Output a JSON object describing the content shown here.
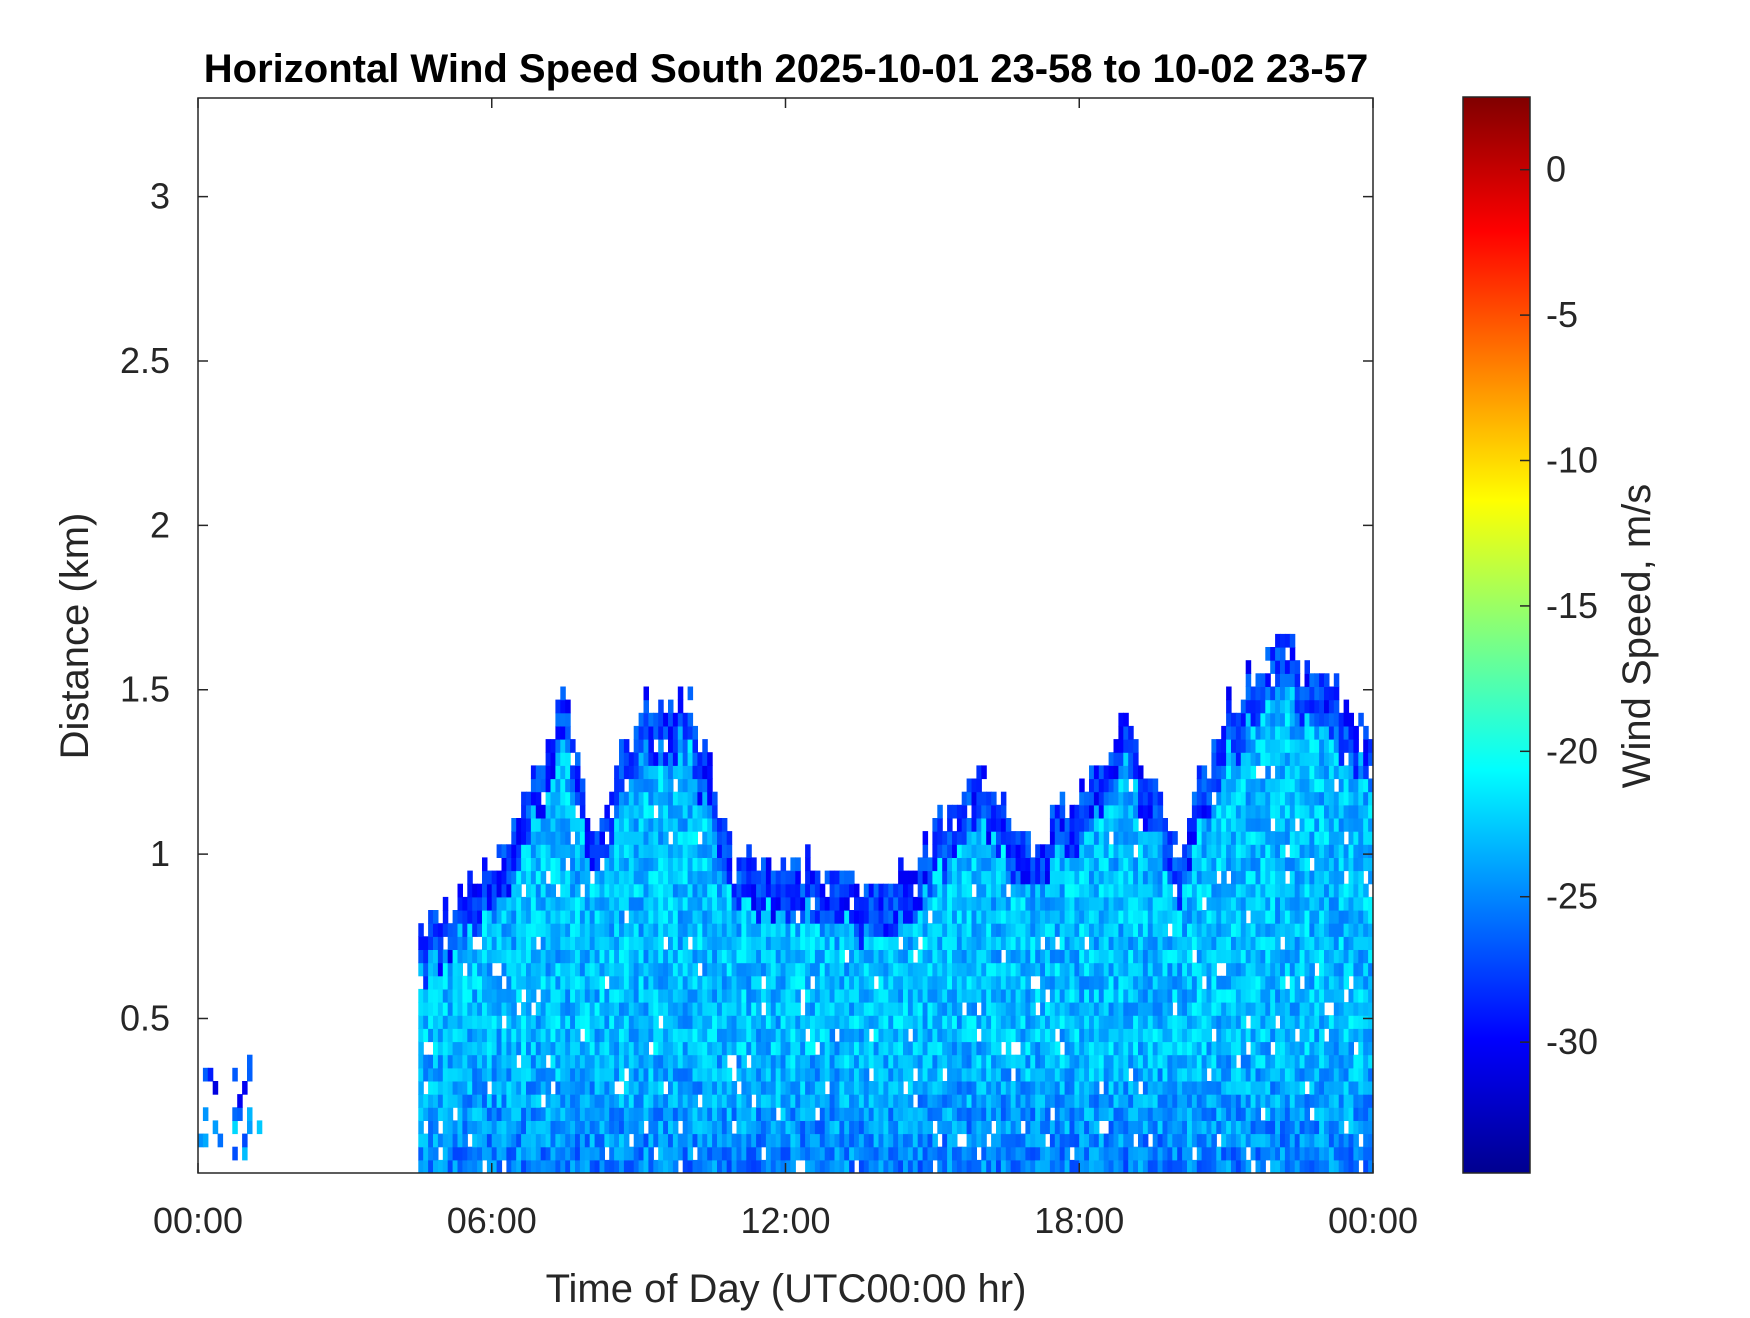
{
  "chart_data": {
    "type": "heatmap",
    "title": "Horizontal Wind Speed South 2025-10-01 23-58 to 10-02 23-57",
    "xlabel": "Time of Day (UTC00:00 hr)",
    "ylabel": "Distance (km)",
    "x_unit": "hours",
    "xlim": [
      0,
      24
    ],
    "ylim": [
      0.03,
      3.3
    ],
    "xticks": [
      0,
      6,
      12,
      18,
      24
    ],
    "xtick_labels": [
      "00:00",
      "06:00",
      "12:00",
      "18:00",
      "00:00"
    ],
    "yticks": [
      0.5,
      1,
      1.5,
      2,
      2.5,
      3
    ],
    "ytick_labels": [
      "0.5",
      "1",
      "1.5",
      "2",
      "2.5",
      "3"
    ],
    "colorbar": {
      "label": "Wind Speed, m/s",
      "range": [
        -34.5,
        2.5
      ],
      "ticks": [
        0,
        -5,
        -10,
        -15,
        -20,
        -25,
        -30
      ],
      "tick_labels": [
        "0",
        "-5",
        "-10",
        "-15",
        "-20",
        "-25",
        "-30"
      ],
      "colormap": "jet"
    },
    "data_extent": {
      "description_hours_vs_top_km": [
        [
          0.0,
          0.35
        ],
        [
          1.0,
          0.3
        ],
        [
          4.5,
          0.75
        ],
        [
          6.0,
          0.95
        ],
        [
          7.5,
          1.45
        ],
        [
          8.2,
          1.0
        ],
        [
          9.0,
          1.45
        ],
        [
          10.0,
          1.45
        ],
        [
          11.0,
          0.95
        ],
        [
          12.0,
          0.98
        ],
        [
          14.0,
          0.85
        ],
        [
          16.0,
          1.25
        ],
        [
          17.0,
          1.0
        ],
        [
          19.0,
          1.4
        ],
        [
          20.0,
          1.0
        ],
        [
          21.0,
          1.4
        ],
        [
          22.0,
          1.65
        ],
        [
          24.0,
          1.35
        ]
      ],
      "typical_speed_m_s": -23
    }
  }
}
